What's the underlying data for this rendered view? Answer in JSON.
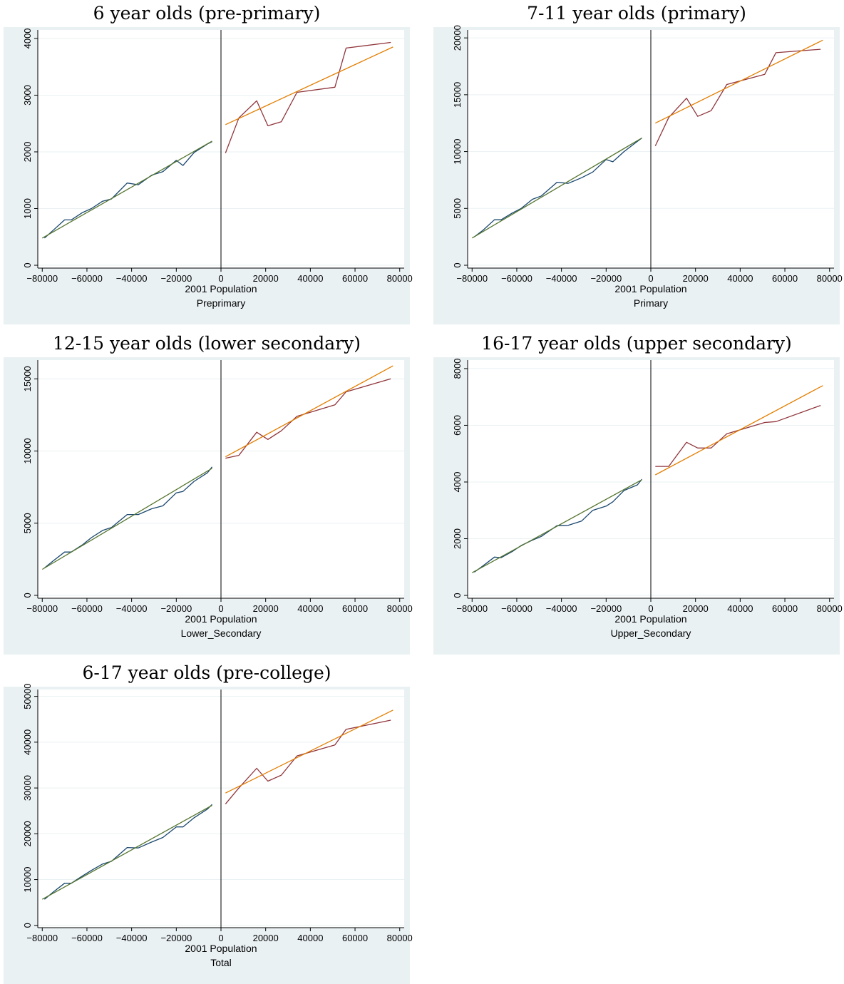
{
  "colors": {
    "background": "#eaf1f3",
    "plot_area": "#ffffff",
    "gridline": "#eaf1f3",
    "left_data": "#1a476f",
    "left_fit": "#55752f",
    "right_data": "#90353b",
    "right_fit": "#e37e00",
    "cutoff": "#000000"
  },
  "chart_data": [
    {
      "type": "line",
      "title": "6 year olds (pre-primary)",
      "xlabel": "2001 Population",
      "ylabel": "",
      "sublabel": "Preprimary",
      "xlim": [
        -82000,
        82000
      ],
      "ylim": [
        -50,
        4150
      ],
      "xticks": [
        -80000,
        -60000,
        -40000,
        -20000,
        0,
        20000,
        40000,
        60000,
        80000
      ],
      "xtick_labels": [
        "−80000",
        "−60000",
        "−40000",
        "−20000",
        "0",
        "20000",
        "40000",
        "60000",
        "80000"
      ],
      "yticks": [
        0,
        1000,
        2000,
        3000,
        4000
      ],
      "ytick_labels": [
        "0",
        "1000",
        "2000",
        "3000",
        "4000"
      ],
      "grid": true,
      "cutoff": 0,
      "series": [
        {
          "role": "left_data",
          "x": [
            -79000,
            -75000,
            -70000,
            -67000,
            -62000,
            -58000,
            -53000,
            -49000,
            -42000,
            -37000,
            -31000,
            -26000,
            -20000,
            -17000,
            -12000,
            -6000,
            -4000
          ],
          "y": [
            480,
            620,
            800,
            800,
            930,
            1000,
            1130,
            1170,
            1450,
            1420,
            1590,
            1650,
            1850,
            1760,
            1990,
            2140,
            2180
          ]
        },
        {
          "role": "left_fit",
          "x": [
            -80000,
            -4000
          ],
          "y": [
            480,
            2190
          ]
        },
        {
          "role": "right_data",
          "x": [
            2000,
            8000,
            16000,
            21000,
            27000,
            34000,
            51000,
            56000,
            76000
          ],
          "y": [
            1980,
            2600,
            2900,
            2460,
            2530,
            3050,
            3140,
            3830,
            3930
          ]
        },
        {
          "role": "right_fit",
          "x": [
            2000,
            77000
          ],
          "y": [
            2480,
            3850
          ]
        }
      ]
    },
    {
      "type": "line",
      "title": "7-11 year olds (primary)",
      "xlabel": "2001 Population",
      "ylabel": "",
      "sublabel": "Primary",
      "xlim": [
        -82000,
        82000
      ],
      "ylim": [
        -250,
        20700
      ],
      "xticks": [
        -80000,
        -60000,
        -40000,
        -20000,
        0,
        20000,
        40000,
        60000,
        80000
      ],
      "xtick_labels": [
        "−80000",
        "−60000",
        "−40000",
        "−20000",
        "0",
        "20000",
        "40000",
        "60000",
        "80000"
      ],
      "yticks": [
        0,
        5000,
        10000,
        15000,
        20000
      ],
      "ytick_labels": [
        "0",
        "5000",
        "10000",
        "15000",
        "20000"
      ],
      "grid": true,
      "cutoff": 0,
      "series": [
        {
          "role": "left_data",
          "x": [
            -79000,
            -75000,
            -70000,
            -67000,
            -62000,
            -58000,
            -53000,
            -49000,
            -42000,
            -37000,
            -31000,
            -26000,
            -20000,
            -17000,
            -12000,
            -6000,
            -4000
          ],
          "y": [
            2500,
            3100,
            4000,
            4000,
            4600,
            5000,
            5800,
            6100,
            7300,
            7200,
            7700,
            8200,
            9300,
            9100,
            10000,
            10900,
            11200
          ]
        },
        {
          "role": "left_fit",
          "x": [
            -80000,
            -4000
          ],
          "y": [
            2400,
            11200
          ]
        },
        {
          "role": "right_data",
          "x": [
            2000,
            8000,
            16000,
            21000,
            27000,
            34000,
            51000,
            56000,
            76000
          ],
          "y": [
            10500,
            13000,
            14700,
            13100,
            13600,
            15900,
            16800,
            18700,
            19000
          ]
        },
        {
          "role": "right_fit",
          "x": [
            2000,
            77000
          ],
          "y": [
            12500,
            19800
          ]
        }
      ]
    },
    {
      "type": "line",
      "title": "12-15 year olds (lower secondary)",
      "xlabel": "2001 Population",
      "ylabel": "",
      "sublabel": "Lower_Secondary",
      "xlim": [
        -82000,
        82000
      ],
      "ylim": [
        -200,
        16300
      ],
      "xticks": [
        -80000,
        -60000,
        -40000,
        -20000,
        0,
        20000,
        40000,
        60000,
        80000
      ],
      "xtick_labels": [
        "−80000",
        "−60000",
        "−40000",
        "−20000",
        "0",
        "20000",
        "40000",
        "60000",
        "80000"
      ],
      "yticks": [
        0,
        5000,
        10000,
        15000
      ],
      "ytick_labels": [
        "0",
        "5000",
        "10000",
        "15000"
      ],
      "grid": true,
      "cutoff": 0,
      "series": [
        {
          "role": "left_data",
          "x": [
            -79000,
            -75000,
            -70000,
            -67000,
            -62000,
            -58000,
            -53000,
            -49000,
            -42000,
            -37000,
            -31000,
            -26000,
            -20000,
            -17000,
            -12000,
            -6000,
            -4000
          ],
          "y": [
            1900,
            2400,
            3000,
            3000,
            3500,
            4000,
            4500,
            4700,
            5600,
            5600,
            6000,
            6200,
            7100,
            7200,
            7900,
            8500,
            8900
          ]
        },
        {
          "role": "left_fit",
          "x": [
            -80000,
            -4000
          ],
          "y": [
            1800,
            8800
          ]
        },
        {
          "role": "right_data",
          "x": [
            2000,
            8000,
            16000,
            21000,
            27000,
            34000,
            51000,
            56000,
            76000
          ],
          "y": [
            9500,
            9700,
            11300,
            10800,
            11400,
            12400,
            13200,
            14100,
            15000
          ]
        },
        {
          "role": "right_fit",
          "x": [
            2000,
            77000
          ],
          "y": [
            9600,
            15900
          ]
        }
      ]
    },
    {
      "type": "line",
      "title": "16-17 year olds (upper secondary)",
      "xlabel": "2001 Population",
      "ylabel": "",
      "sublabel": "Upper_Secondary",
      "xlim": [
        -82000,
        82000
      ],
      "ylim": [
        -100,
        8300
      ],
      "xticks": [
        -80000,
        -60000,
        -40000,
        -20000,
        0,
        20000,
        40000,
        60000,
        80000
      ],
      "xtick_labels": [
        "−80000",
        "−60000",
        "−40000",
        "−20000",
        "0",
        "20000",
        "40000",
        "60000",
        "80000"
      ],
      "yticks": [
        0,
        2000,
        4000,
        6000,
        8000
      ],
      "ytick_labels": [
        "0",
        "2000",
        "4000",
        "6000",
        "8000"
      ],
      "grid": true,
      "cutoff": 0,
      "series": [
        {
          "role": "left_data",
          "x": [
            -79000,
            -75000,
            -70000,
            -67000,
            -62000,
            -58000,
            -53000,
            -49000,
            -42000,
            -37000,
            -31000,
            -26000,
            -20000,
            -17000,
            -12000,
            -6000,
            -4000
          ],
          "y": [
            820,
            1050,
            1350,
            1330,
            1550,
            1760,
            1950,
            2080,
            2460,
            2470,
            2620,
            3000,
            3150,
            3300,
            3700,
            3900,
            4100
          ]
        },
        {
          "role": "left_fit",
          "x": [
            -80000,
            -4000
          ],
          "y": [
            800,
            4080
          ]
        },
        {
          "role": "right_data",
          "x": [
            2000,
            8000,
            16000,
            21000,
            27000,
            34000,
            51000,
            56000,
            76000
          ],
          "y": [
            4550,
            4550,
            5400,
            5200,
            5200,
            5700,
            6100,
            6130,
            6700
          ]
        },
        {
          "role": "right_fit",
          "x": [
            2000,
            77000
          ],
          "y": [
            4250,
            7400
          ]
        }
      ]
    },
    {
      "type": "line",
      "title": "6-17 year olds (pre-college)",
      "xlabel": "2001 Population",
      "ylabel": "",
      "sublabel": "Total",
      "xlim": [
        -82000,
        82000
      ],
      "ylim": [
        -500,
        51500
      ],
      "xticks": [
        -80000,
        -60000,
        -40000,
        -20000,
        0,
        20000,
        40000,
        60000,
        80000
      ],
      "xtick_labels": [
        "−80000",
        "−60000",
        "−40000",
        "−20000",
        "0",
        "20000",
        "40000",
        "60000",
        "80000"
      ],
      "yticks": [
        0,
        10000,
        20000,
        30000,
        40000,
        50000
      ],
      "ytick_labels": [
        "0",
        "10000",
        "20000",
        "30000",
        "40000",
        "50000"
      ],
      "grid": true,
      "cutoff": 0,
      "series": [
        {
          "role": "left_data",
          "x": [
            -79000,
            -75000,
            -70000,
            -67000,
            -62000,
            -58000,
            -53000,
            -49000,
            -42000,
            -37000,
            -31000,
            -26000,
            -20000,
            -17000,
            -12000,
            -6000,
            -4000
          ],
          "y": [
            5700,
            7300,
            9200,
            9200,
            10800,
            12000,
            13400,
            14000,
            17000,
            16900,
            18200,
            19200,
            21500,
            21500,
            23500,
            25400,
            26400
          ]
        },
        {
          "role": "left_fit",
          "x": [
            -80000,
            -4000
          ],
          "y": [
            5700,
            26200
          ]
        },
        {
          "role": "right_data",
          "x": [
            2000,
            8000,
            16000,
            21000,
            27000,
            34000,
            51000,
            56000,
            76000
          ],
          "y": [
            26500,
            30000,
            34300,
            31500,
            32800,
            37000,
            39400,
            42800,
            44800
          ]
        },
        {
          "role": "right_fit",
          "x": [
            2000,
            77000
          ],
          "y": [
            28900,
            47000
          ]
        }
      ]
    }
  ]
}
